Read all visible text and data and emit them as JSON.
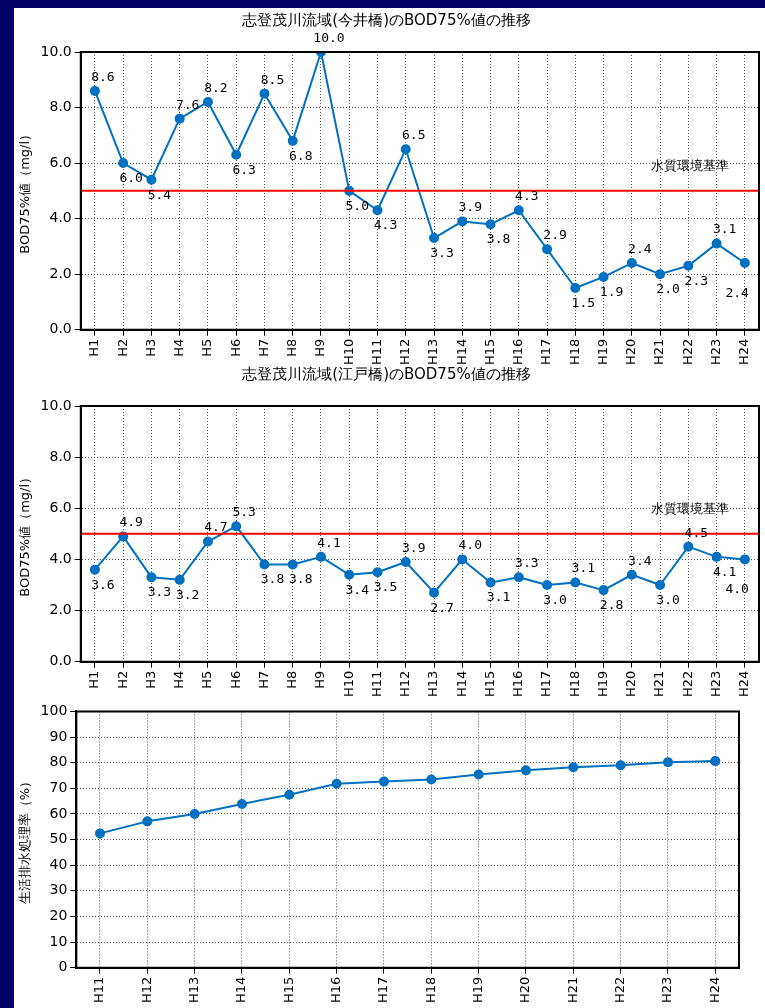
{
  "chart_data": [
    {
      "type": "line",
      "title": "志登茂川流域(今井橋)のBOD75%値の推移",
      "ylabel": "BOD75%値（mg/l）",
      "categories": [
        "H1",
        "H2",
        "H3",
        "H4",
        "H5",
        "H6",
        "H7",
        "H8",
        "H9",
        "H10",
        "H11",
        "H12",
        "H13",
        "H14",
        "H15",
        "H16",
        "H17",
        "H18",
        "H19",
        "H20",
        "H21",
        "H22",
        "H23",
        "H24"
      ],
      "series": [
        {
          "color": "#0070c0",
          "values": [
            8.6,
            6.0,
            5.4,
            7.6,
            8.2,
            6.3,
            8.5,
            6.8,
            10.0,
            5.0,
            4.3,
            6.5,
            3.3,
            3.9,
            3.8,
            4.3,
            2.9,
            1.5,
            1.9,
            2.4,
            2.0,
            2.3,
            3.1,
            2.4
          ],
          "value_labels": [
            "8.6",
            "6.0",
            "5.4",
            "7.6",
            "8.2",
            "6.3",
            "8.5",
            "6.8",
            "10.0",
            "5.0",
            "4.3",
            "6.5",
            "3.3",
            "3.9",
            "3.8",
            "4.3",
            "2.9",
            "1.5",
            "1.9",
            "2.4",
            "2.0",
            "2.3",
            "3.1",
            "2.4"
          ]
        }
      ],
      "ylim": [
        0,
        10
      ],
      "yticks": [
        {
          "value": 0,
          "label": "0.0"
        },
        {
          "value": 2,
          "label": "2.0"
        },
        {
          "value": 4,
          "label": "4.0"
        },
        {
          "value": 6,
          "label": "6.0"
        },
        {
          "value": 8,
          "label": "8.0"
        },
        {
          "value": 10,
          "label": "10.0"
        }
      ],
      "ref_lines": [
        {
          "axis": "y",
          "value": 5,
          "label": "水質環境基準",
          "color": "#ff0000"
        }
      ],
      "grid": true,
      "legend": false,
      "marker": "circle",
      "line_style": "solid"
    },
    {
      "type": "line",
      "title": "志登茂川流域(江戸橋)のBOD75%値の推移",
      "ylabel": "BOD75%値（mg/l）",
      "categories": [
        "H1",
        "H2",
        "H3",
        "H4",
        "H5",
        "H6",
        "H7",
        "H8",
        "H9",
        "H10",
        "H11",
        "H12",
        "H13",
        "H14",
        "H15",
        "H16",
        "H17",
        "H18",
        "H19",
        "H20",
        "H21",
        "H22",
        "H23",
        "H24"
      ],
      "series": [
        {
          "color": "#0070c0",
          "values": [
            3.6,
            4.9,
            3.3,
            3.2,
            4.7,
            5.3,
            3.8,
            3.8,
            4.1,
            3.4,
            3.5,
            3.9,
            2.7,
            4.0,
            3.1,
            3.3,
            3.0,
            3.1,
            2.8,
            3.4,
            3.0,
            4.5,
            4.1,
            4.0
          ],
          "value_labels": [
            "3.6",
            "4.9",
            "3.3",
            "3.2",
            "4.7",
            "5.3",
            "3.8",
            "3.8",
            "4.1",
            "3.4",
            "3.5",
            "3.9",
            "2.7",
            "4.0",
            "3.1",
            "3.3",
            "3.0",
            "3.1",
            "2.8",
            "3.4",
            "3.0",
            "4.5",
            "4.1",
            "4.0"
          ]
        }
      ],
      "ylim": [
        0,
        10
      ],
      "yticks": [
        {
          "value": 0,
          "label": "0.0"
        },
        {
          "value": 2,
          "label": "2.0"
        },
        {
          "value": 4,
          "label": "4.0"
        },
        {
          "value": 6,
          "label": "6.0"
        },
        {
          "value": 8,
          "label": "8.0"
        },
        {
          "value": 10,
          "label": "10.0"
        }
      ],
      "ref_lines": [
        {
          "axis": "y",
          "value": 5,
          "label": "水質環境基準",
          "color": "#ff0000"
        }
      ],
      "grid": true,
      "legend": false,
      "marker": "circle",
      "line_style": "solid"
    },
    {
      "type": "line",
      "ylabel": "生活排水処理率（%）",
      "categories": [
        "H11",
        "H12",
        "H13",
        "H14",
        "H15",
        "H16",
        "H17",
        "H18",
        "H19",
        "H20",
        "H21",
        "H22",
        "H23",
        "H24"
      ],
      "series": [
        {
          "color": "#0070c0",
          "values": [
            52.4,
            57.1,
            60.0,
            63.9,
            67.5,
            71.8,
            72.6,
            73.4,
            75.4,
            77.0,
            78.2,
            79.0,
            80.2,
            80.6
          ]
        }
      ],
      "ylim": [
        0,
        100
      ],
      "yticks": [
        0,
        10,
        20,
        30,
        40,
        50,
        60,
        70,
        80,
        90,
        100
      ],
      "grid": true,
      "legend": false,
      "marker": "circle",
      "line_style": "solid"
    }
  ]
}
